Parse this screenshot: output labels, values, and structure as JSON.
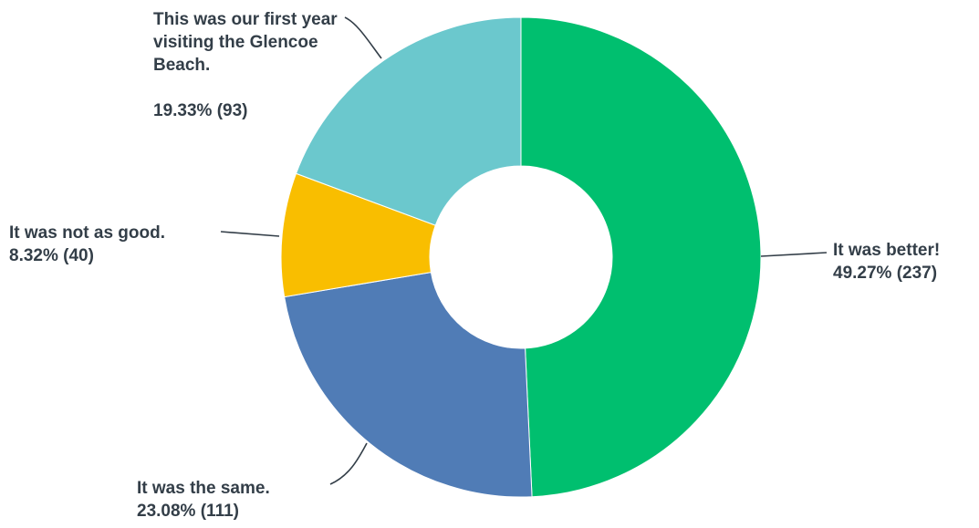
{
  "chart_data": {
    "type": "pie",
    "style": "donut",
    "start_angle_deg": 0,
    "direction": "clockwise",
    "slices": [
      {
        "label": "It was better!",
        "percent": 49.27,
        "count": 237,
        "percent_text": "49.27% (237)",
        "color": "#00bf6f"
      },
      {
        "label": "It was the same.",
        "percent": 23.08,
        "count": 111,
        "percent_text": "23.08% (111)",
        "color": "#507cb6"
      },
      {
        "label": "It was not as good.",
        "percent": 8.32,
        "count": 40,
        "percent_text": "8.32% (40)",
        "color": "#f9be00"
      },
      {
        "label": "This was our first year visiting the Glencoe Beach.",
        "percent": 19.33,
        "count": 93,
        "percent_text": "19.33% (93)",
        "color": "#6bc8cd"
      }
    ],
    "leader_line_color": "#333e48",
    "label_color": "#333e48"
  }
}
